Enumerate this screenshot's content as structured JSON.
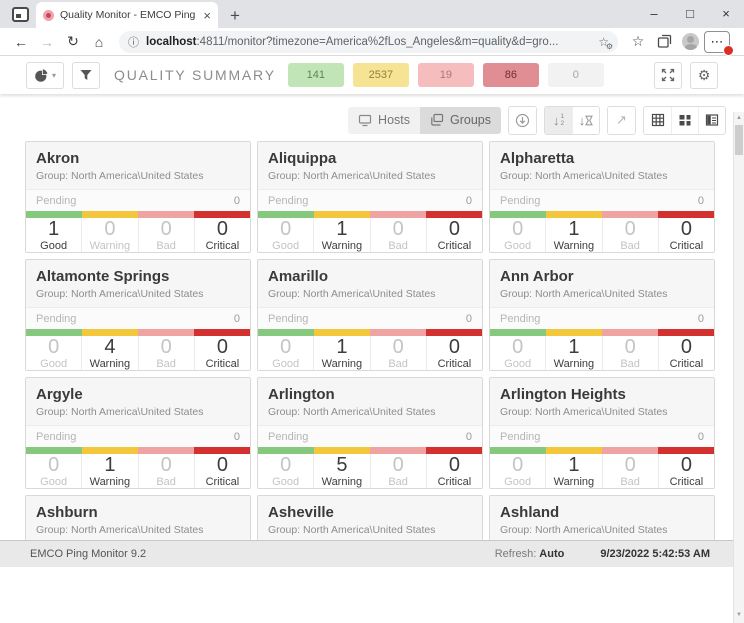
{
  "browser": {
    "tab_title": "Quality Monitor - EMCO Ping M",
    "url_host": "localhost",
    "url_rest": ":4811/monitor?timezone=America%2fLos_Angeles&m=quality&d=gro..."
  },
  "app_toolbar": {
    "title": "QUALITY SUMMARY",
    "badges": [
      {
        "name": "good",
        "value": "141"
      },
      {
        "name": "warning",
        "value": "2537"
      },
      {
        "name": "bad",
        "value": "19"
      },
      {
        "name": "critical",
        "value": "86"
      },
      {
        "name": "pending",
        "value": "0"
      }
    ]
  },
  "view_toolbar": {
    "hosts_label": "Hosts",
    "groups_label": "Groups"
  },
  "labels": {
    "pending": "Pending",
    "good": "Good",
    "warning": "Warning",
    "bad": "Bad",
    "critical": "Critical"
  },
  "cards": [
    {
      "title": "Akron",
      "group": "Group: North America\\United States",
      "pending": "0",
      "good": "1",
      "warning": "0",
      "bad": "0",
      "critical": "0"
    },
    {
      "title": "Aliquippa",
      "group": "Group: North America\\United States",
      "pending": "0",
      "good": "0",
      "warning": "1",
      "bad": "0",
      "critical": "0"
    },
    {
      "title": "Alpharetta",
      "group": "Group: North America\\United States",
      "pending": "0",
      "good": "0",
      "warning": "1",
      "bad": "0",
      "critical": "0"
    },
    {
      "title": "Altamonte Springs",
      "group": "Group: North America\\United States",
      "pending": "0",
      "good": "0",
      "warning": "4",
      "bad": "0",
      "critical": "0"
    },
    {
      "title": "Amarillo",
      "group": "Group: North America\\United States",
      "pending": "0",
      "good": "0",
      "warning": "1",
      "bad": "0",
      "critical": "0"
    },
    {
      "title": "Ann Arbor",
      "group": "Group: North America\\United States",
      "pending": "0",
      "good": "0",
      "warning": "1",
      "bad": "0",
      "critical": "0"
    },
    {
      "title": "Argyle",
      "group": "Group: North America\\United States",
      "pending": "0",
      "good": "0",
      "warning": "1",
      "bad": "0",
      "critical": "0"
    },
    {
      "title": "Arlington",
      "group": "Group: North America\\United States",
      "pending": "0",
      "good": "0",
      "warning": "5",
      "bad": "0",
      "critical": "0"
    },
    {
      "title": "Arlington Heights",
      "group": "Group: North America\\United States",
      "pending": "0",
      "good": "0",
      "warning": "1",
      "bad": "0",
      "critical": "0"
    },
    {
      "title": "Ashburn",
      "group": "Group: North America\\United States",
      "partial": true
    },
    {
      "title": "Asheville",
      "group": "Group: North America\\United States",
      "partial": true
    },
    {
      "title": "Ashland",
      "group": "Group: North America\\United States",
      "partial": true
    }
  ],
  "status_bar": {
    "app_name": "EMCO Ping Monitor 9.2",
    "refresh_label": "Refresh:",
    "refresh_value": "Auto",
    "datetime": "9/23/2022 5:42:53 AM"
  },
  "colors": {
    "good": "#85c87e",
    "warning": "#f2c73c",
    "bad": "#f0a3a3",
    "critical": "#d33030",
    "badge_good_bg": "#c2e5b8",
    "badge_warning_bg": "#f6e394",
    "badge_bad_bg": "#f6bdbf",
    "badge_critical_bg": "#e08e93",
    "badge_pending_bg": "#f2f2f2"
  },
  "icons": {
    "back": "←",
    "forward": "→",
    "refresh": "↻",
    "home": "⌂",
    "info": "ⓘ",
    "star": "☆",
    "gear": "⚙",
    "menu": "⋯",
    "tab_close": "×",
    "new_tab": "+",
    "minimize": "–",
    "maximize": "□",
    "close": "×",
    "caret": "▾",
    "down_arrow": "↓",
    "external": "↗",
    "scroll_up": "▲",
    "scroll_down": "▼",
    "sort_one": "1",
    "sort_two": "2",
    "gear_small": "⚙"
  }
}
